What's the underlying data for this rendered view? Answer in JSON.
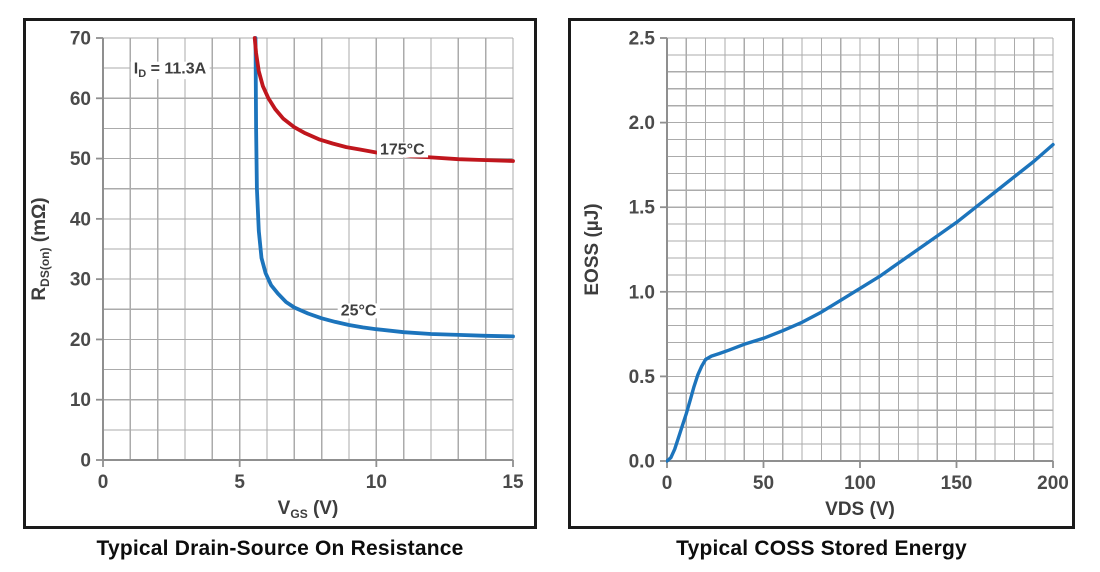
{
  "style": {
    "background": "#ffffff",
    "frame_color": "#1a1a1a",
    "grid_color": "#ababab",
    "axis_color": "#8f8f8f",
    "tick_text_color": "#4a4a4a",
    "title_color": "#0d0d0d",
    "curve_blue": "#1c74bc",
    "curve_red": "#c0161d"
  },
  "chart_data": [
    {
      "type": "line",
      "title": "Typical Drain-Source On Resistance",
      "xlabel": "VGS (V)",
      "ylabel": "RDS(on) (mΩ)",
      "xlabel_segments": [
        {
          "t": "V"
        },
        {
          "t": "GS",
          "sub": true
        },
        {
          "t": " (V)"
        }
      ],
      "ylabel_segments": [
        {
          "t": "R"
        },
        {
          "t": "DS(on)",
          "sub": true
        },
        {
          "t": " (mΩ)"
        }
      ],
      "xlim": [
        0,
        15
      ],
      "ylim": [
        0,
        70
      ],
      "x_grid_step": 1,
      "y_grid_step": 5,
      "grid": "on",
      "legend_position": "inline-labels",
      "stroke_width": 3.8,
      "x_ticks": [
        {
          "v": 0,
          "t": "0"
        },
        {
          "v": 5,
          "t": "5"
        },
        {
          "v": 10,
          "t": "10"
        },
        {
          "v": 15,
          "t": "15"
        }
      ],
      "y_ticks": [
        {
          "v": 0,
          "t": "0"
        },
        {
          "v": 10,
          "t": "10"
        },
        {
          "v": 20,
          "t": "20"
        },
        {
          "v": 30,
          "t": "30"
        },
        {
          "v": 40,
          "t": "40"
        },
        {
          "v": 50,
          "t": "50"
        },
        {
          "v": 60,
          "t": "60"
        },
        {
          "v": 70,
          "t": "70"
        }
      ],
      "series": [
        {
          "name": "25°C",
          "color": "#1c74bc",
          "points": [
            [
              5.58,
              70
            ],
            [
              5.6,
              55
            ],
            [
              5.63,
              45
            ],
            [
              5.7,
              38
            ],
            [
              5.8,
              33.5
            ],
            [
              5.95,
              31
            ],
            [
              6.15,
              29
            ],
            [
              6.4,
              27.6
            ],
            [
              6.7,
              26.2
            ],
            [
              7.0,
              25.3
            ],
            [
              7.5,
              24.3
            ],
            [
              8.0,
              23.5
            ],
            [
              8.5,
              22.9
            ],
            [
              9.0,
              22.4
            ],
            [
              9.5,
              22.0
            ],
            [
              10,
              21.7
            ],
            [
              11,
              21.2
            ],
            [
              12,
              20.9
            ],
            [
              13,
              20.75
            ],
            [
              14,
              20.6
            ],
            [
              15,
              20.5
            ]
          ]
        },
        {
          "name": "175°C",
          "color": "#c0161d",
          "points": [
            [
              5.55,
              70
            ],
            [
              5.6,
              67.5
            ],
            [
              5.7,
              64.5
            ],
            [
              5.85,
              62
            ],
            [
              6.05,
              60
            ],
            [
              6.3,
              58.2
            ],
            [
              6.6,
              56.6
            ],
            [
              7.0,
              55.2
            ],
            [
              7.4,
              54.2
            ],
            [
              7.9,
              53.2
            ],
            [
              8.4,
              52.5
            ],
            [
              8.9,
              51.9
            ],
            [
              9.4,
              51.5
            ],
            [
              10,
              51.0
            ],
            [
              10.6,
              50.7
            ],
            [
              11.3,
              50.4
            ],
            [
              12,
              50.2
            ],
            [
              13,
              49.9
            ],
            [
              14,
              49.75
            ],
            [
              15,
              49.6
            ]
          ]
        }
      ],
      "annotations": [
        {
          "segments": [
            {
              "t": "I"
            },
            {
              "t": "D",
              "sub": true
            },
            {
              "t": " = 11.3A"
            }
          ],
          "x": 2.45,
          "y": 65,
          "text": "ID = 11.3A"
        },
        {
          "segments": [
            {
              "t": "175°C"
            }
          ],
          "x": 10.95,
          "y": 51.6,
          "text": "175°C"
        },
        {
          "segments": [
            {
              "t": "25°C"
            }
          ],
          "x": 9.35,
          "y": 24.9,
          "text": "25°C"
        }
      ]
    },
    {
      "type": "line",
      "title": "Typical COSS Stored Energy",
      "xlabel": "VDS (V)",
      "ylabel": "EOSS (µJ)",
      "xlabel_segments": [
        {
          "t": "VDS (V)"
        }
      ],
      "ylabel_segments": [
        {
          "t": "EOSS (µJ)"
        }
      ],
      "xlim": [
        0,
        200
      ],
      "ylim": [
        0,
        2.5
      ],
      "x_grid_step": 10,
      "y_grid_step": 0.1,
      "grid": "on",
      "legend_position": "none",
      "stroke_width": 3.4,
      "x_ticks": [
        {
          "v": 0,
          "t": "0"
        },
        {
          "v": 50,
          "t": "50"
        },
        {
          "v": 100,
          "t": "100"
        },
        {
          "v": 150,
          "t": "150"
        },
        {
          "v": 200,
          "t": "200"
        }
      ],
      "y_ticks": [
        {
          "v": 0,
          "t": "0.0"
        },
        {
          "v": 0.5,
          "t": "0.5"
        },
        {
          "v": 1,
          "t": "1.0"
        },
        {
          "v": 1.5,
          "t": "1.5"
        },
        {
          "v": 2,
          "t": "2.0"
        },
        {
          "v": 2.5,
          "t": "2.5"
        }
      ],
      "series": [
        {
          "name": "EOSS",
          "color": "#1c74bc",
          "points": [
            [
              0,
              0
            ],
            [
              2,
              0.02
            ],
            [
              4,
              0.07
            ],
            [
              6,
              0.14
            ],
            [
              8,
              0.21
            ],
            [
              10,
              0.28
            ],
            [
              12,
              0.36
            ],
            [
              14,
              0.44
            ],
            [
              16,
              0.51
            ],
            [
              18,
              0.56
            ],
            [
              20,
              0.6
            ],
            [
              23,
              0.62
            ],
            [
              27,
              0.635
            ],
            [
              32,
              0.655
            ],
            [
              40,
              0.69
            ],
            [
              50,
              0.725
            ],
            [
              60,
              0.77
            ],
            [
              70,
              0.82
            ],
            [
              80,
              0.88
            ],
            [
              90,
              0.95
            ],
            [
              100,
              1.02
            ],
            [
              110,
              1.09
            ],
            [
              120,
              1.17
            ],
            [
              130,
              1.25
            ],
            [
              140,
              1.33
            ],
            [
              150,
              1.41
            ],
            [
              160,
              1.5
            ],
            [
              170,
              1.59
            ],
            [
              180,
              1.68
            ],
            [
              190,
              1.77
            ],
            [
              200,
              1.87
            ]
          ]
        }
      ],
      "annotations": []
    }
  ]
}
